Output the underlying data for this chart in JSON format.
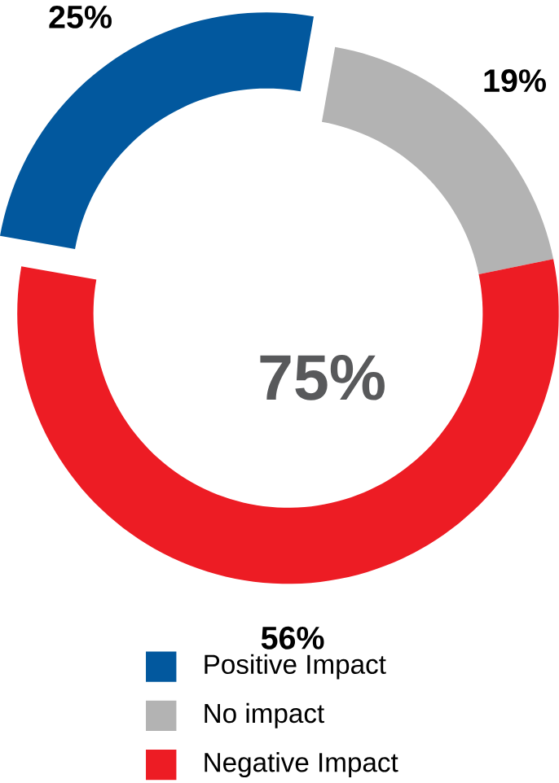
{
  "chart_data": {
    "type": "donut",
    "categories": [
      "Positive Impact",
      "No impact",
      "Negative Impact"
    ],
    "values": [
      25,
      19,
      56
    ],
    "colors": [
      "#02589e",
      "#b3b3b3",
      "#ed1c24"
    ],
    "value_labels": [
      "25%",
      "19%",
      "56%"
    ],
    "annotations": [
      "75%"
    ],
    "legend": "bottom"
  }
}
